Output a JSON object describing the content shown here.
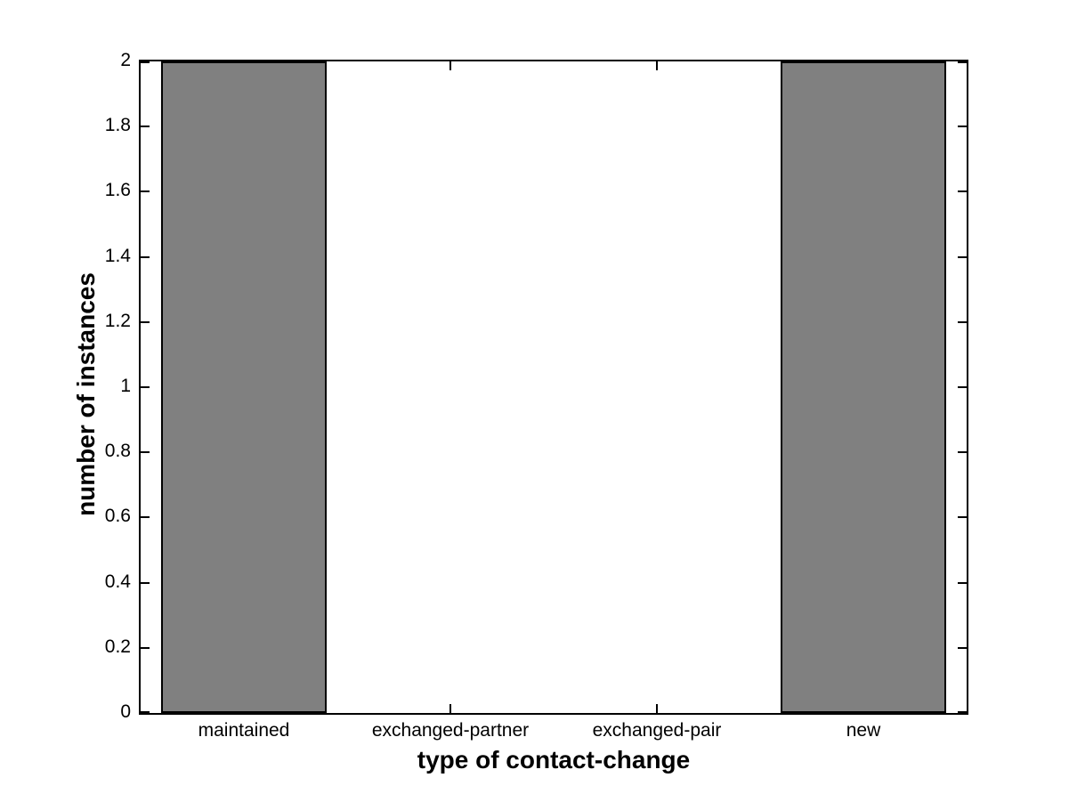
{
  "chart_data": {
    "type": "bar",
    "categories": [
      "maintained",
      "exchanged-partner",
      "exchanged-pair",
      "new"
    ],
    "values": [
      2,
      0,
      0,
      2
    ],
    "xlabel": "type of contact-change",
    "ylabel": "number of instances",
    "ylim": [
      0,
      2
    ],
    "yticks": [
      0,
      0.2,
      0.4,
      0.6,
      0.8,
      1,
      1.2,
      1.4,
      1.6,
      1.8,
      2
    ],
    "ytick_labels": [
      "0",
      "0.2",
      "0.4",
      "0.6",
      "0.8",
      "1",
      "1.2",
      "1.4",
      "1.6",
      "1.8",
      "2"
    ],
    "bar_width_fraction": 0.8,
    "bar_color": "#808080",
    "bar_edge_color": "#000000",
    "axis_color": "#000000",
    "background_color": "#ffffff",
    "grid": false,
    "legend": false,
    "tick_direction": "in",
    "box": true
  }
}
